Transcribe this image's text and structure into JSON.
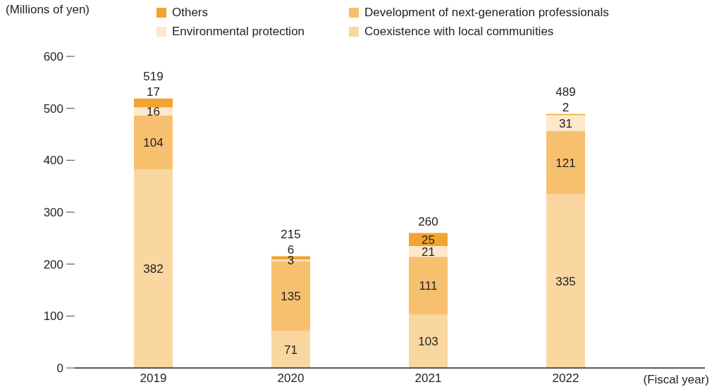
{
  "chart_data": {
    "type": "bar",
    "stacked": true,
    "ylabel": "(Millions of yen)",
    "xlabel": "(Fiscal year)",
    "categories": [
      "2019",
      "2020",
      "2021",
      "2022"
    ],
    "series": [
      {
        "name": "Coexistence with local communities",
        "color": "#fad6a0",
        "values": [
          382,
          71,
          103,
          335
        ]
      },
      {
        "name": "Development of next-generation professionals",
        "color": "#f7c06f",
        "values": [
          104,
          135,
          111,
          121
        ]
      },
      {
        "name": "Environmental protection",
        "color": "#fde8cc",
        "values": [
          16,
          3,
          21,
          31
        ]
      },
      {
        "name": "Others",
        "color": "#f3a331",
        "values": [
          17,
          6,
          25,
          2
        ]
      }
    ],
    "totals": [
      "519",
      "215",
      "260",
      "489"
    ],
    "ylim": [
      0,
      600
    ],
    "yticks": [
      0,
      100,
      200,
      300,
      400,
      500,
      600
    ],
    "grid": false,
    "legend": "top",
    "data_labels": true
  }
}
